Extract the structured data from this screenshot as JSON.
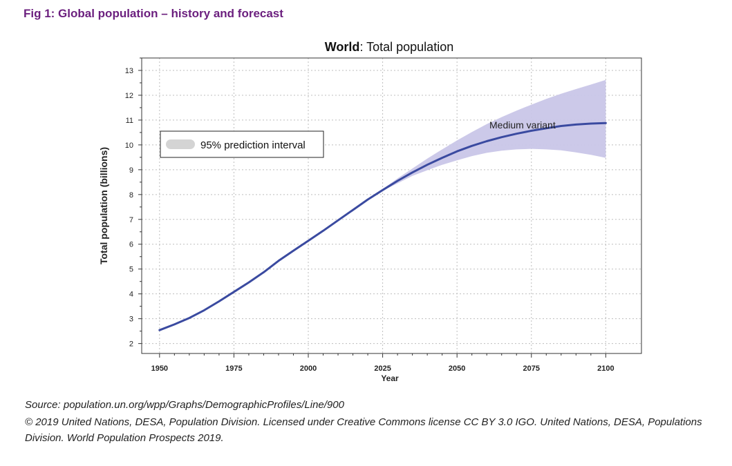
{
  "figure_title": "Fig 1: Global population – history and forecast",
  "source_line": "Source: population.un.org/wpp/Graphs/DemographicProfiles/Line/900",
  "license_line": "© 2019 United Nations, DESA, Population Division. Licensed under Creative Commons license CC BY 3.0 IGO. United Nations, DESA, Populations Division. World Population Prospects 2019.",
  "colors": {
    "title": "#6b1f7e",
    "series_line": "#3a4aa0",
    "interval_fill": "#c9c6e8",
    "legend_swatch": "#d4d4d4"
  },
  "chart_data": {
    "type": "line",
    "title_bold": "World",
    "title_rest": ": Total population",
    "xlabel": "Year",
    "ylabel": "Total population (billions)",
    "xlim": [
      1944,
      2112
    ],
    "ylim": [
      1.6,
      13.5
    ],
    "xticks": [
      1950,
      1975,
      2000,
      2025,
      2050,
      2075,
      2100
    ],
    "yticks": [
      2,
      3,
      4,
      5,
      6,
      7,
      8,
      9,
      10,
      11,
      12,
      13
    ],
    "grid": true,
    "legend": {
      "placement": "top-left",
      "label": "95% prediction interval"
    },
    "series": [
      {
        "name": "Medium variant",
        "x": [
          1950,
          1955,
          1960,
          1965,
          1970,
          1975,
          1980,
          1985,
          1990,
          1995,
          2000,
          2005,
          2010,
          2015,
          2020,
          2025,
          2030,
          2035,
          2040,
          2045,
          2050,
          2055,
          2060,
          2065,
          2070,
          2075,
          2080,
          2085,
          2090,
          2095,
          2100
        ],
        "y": [
          2.54,
          2.77,
          3.03,
          3.34,
          3.7,
          4.08,
          4.46,
          4.87,
          5.33,
          5.74,
          6.14,
          6.54,
          6.96,
          7.38,
          7.8,
          8.18,
          8.55,
          8.89,
          9.2,
          9.48,
          9.74,
          9.96,
          10.15,
          10.31,
          10.45,
          10.57,
          10.67,
          10.76,
          10.82,
          10.86,
          10.88
        ]
      }
    ],
    "prediction_interval": {
      "x": [
        2020,
        2025,
        2030,
        2035,
        2040,
        2045,
        2050,
        2055,
        2060,
        2065,
        2070,
        2075,
        2080,
        2085,
        2090,
        2095,
        2100
      ],
      "upper": [
        7.8,
        8.22,
        8.65,
        9.05,
        9.45,
        9.82,
        10.18,
        10.52,
        10.84,
        11.12,
        11.38,
        11.62,
        11.85,
        12.06,
        12.25,
        12.43,
        12.62
      ],
      "lower": [
        7.8,
        8.15,
        8.45,
        8.75,
        8.98,
        9.2,
        9.38,
        9.55,
        9.68,
        9.77,
        9.82,
        9.84,
        9.82,
        9.78,
        9.7,
        9.6,
        9.48
      ]
    }
  }
}
